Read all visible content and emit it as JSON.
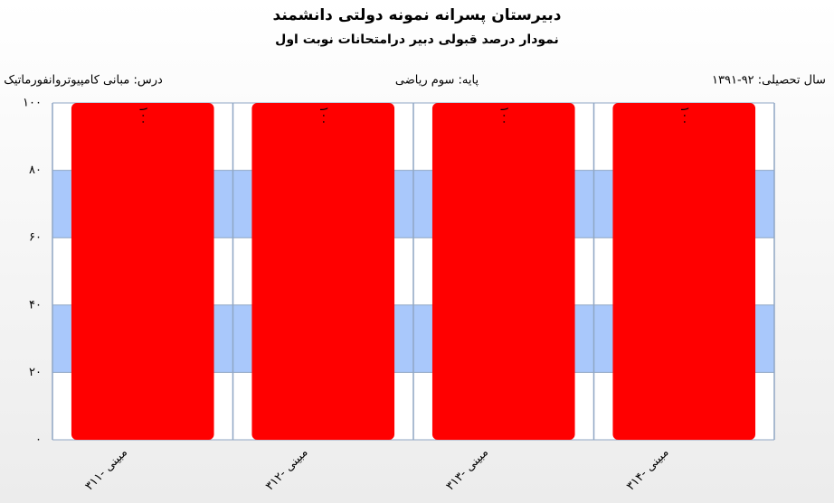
{
  "chart_data": {
    "type": "bar",
    "title": "دبیرستان پسرانه نمونه دولتی دانشمند",
    "subtitle": "نمودار درصد قبولی دبیر درامتحانات نوبت اول",
    "annotations": [
      "درس: مبانی  کامپیوتروانفورماتیک",
      "پایه: سوم ریاضی",
      "سال تحصیلی: ۹۲-۱۳۹۱"
    ],
    "categories": [
      "مبینی -۳۱۱",
      "مبینی -۳۱۲",
      "مبینی -۳۱۳",
      "مبینی -۳۱۴"
    ],
    "values": [
      100,
      100,
      100,
      100
    ],
    "value_labels": [
      "۱۰۰",
      "۱۰۰",
      "۱۰۰",
      "۱۰۰"
    ],
    "color": "#ff0000",
    "band_color": "#a9c8fb",
    "ylim": [
      0,
      100
    ],
    "yticks": [
      {
        "value": 0,
        "label": "۰"
      },
      {
        "value": 20,
        "label": "۲۰"
      },
      {
        "value": 40,
        "label": "۴۰"
      },
      {
        "value": 60,
        "label": "۶۰"
      },
      {
        "value": 80,
        "label": "۸۰"
      },
      {
        "value": 100,
        "label": "۱۰۰"
      }
    ],
    "grid": true
  }
}
